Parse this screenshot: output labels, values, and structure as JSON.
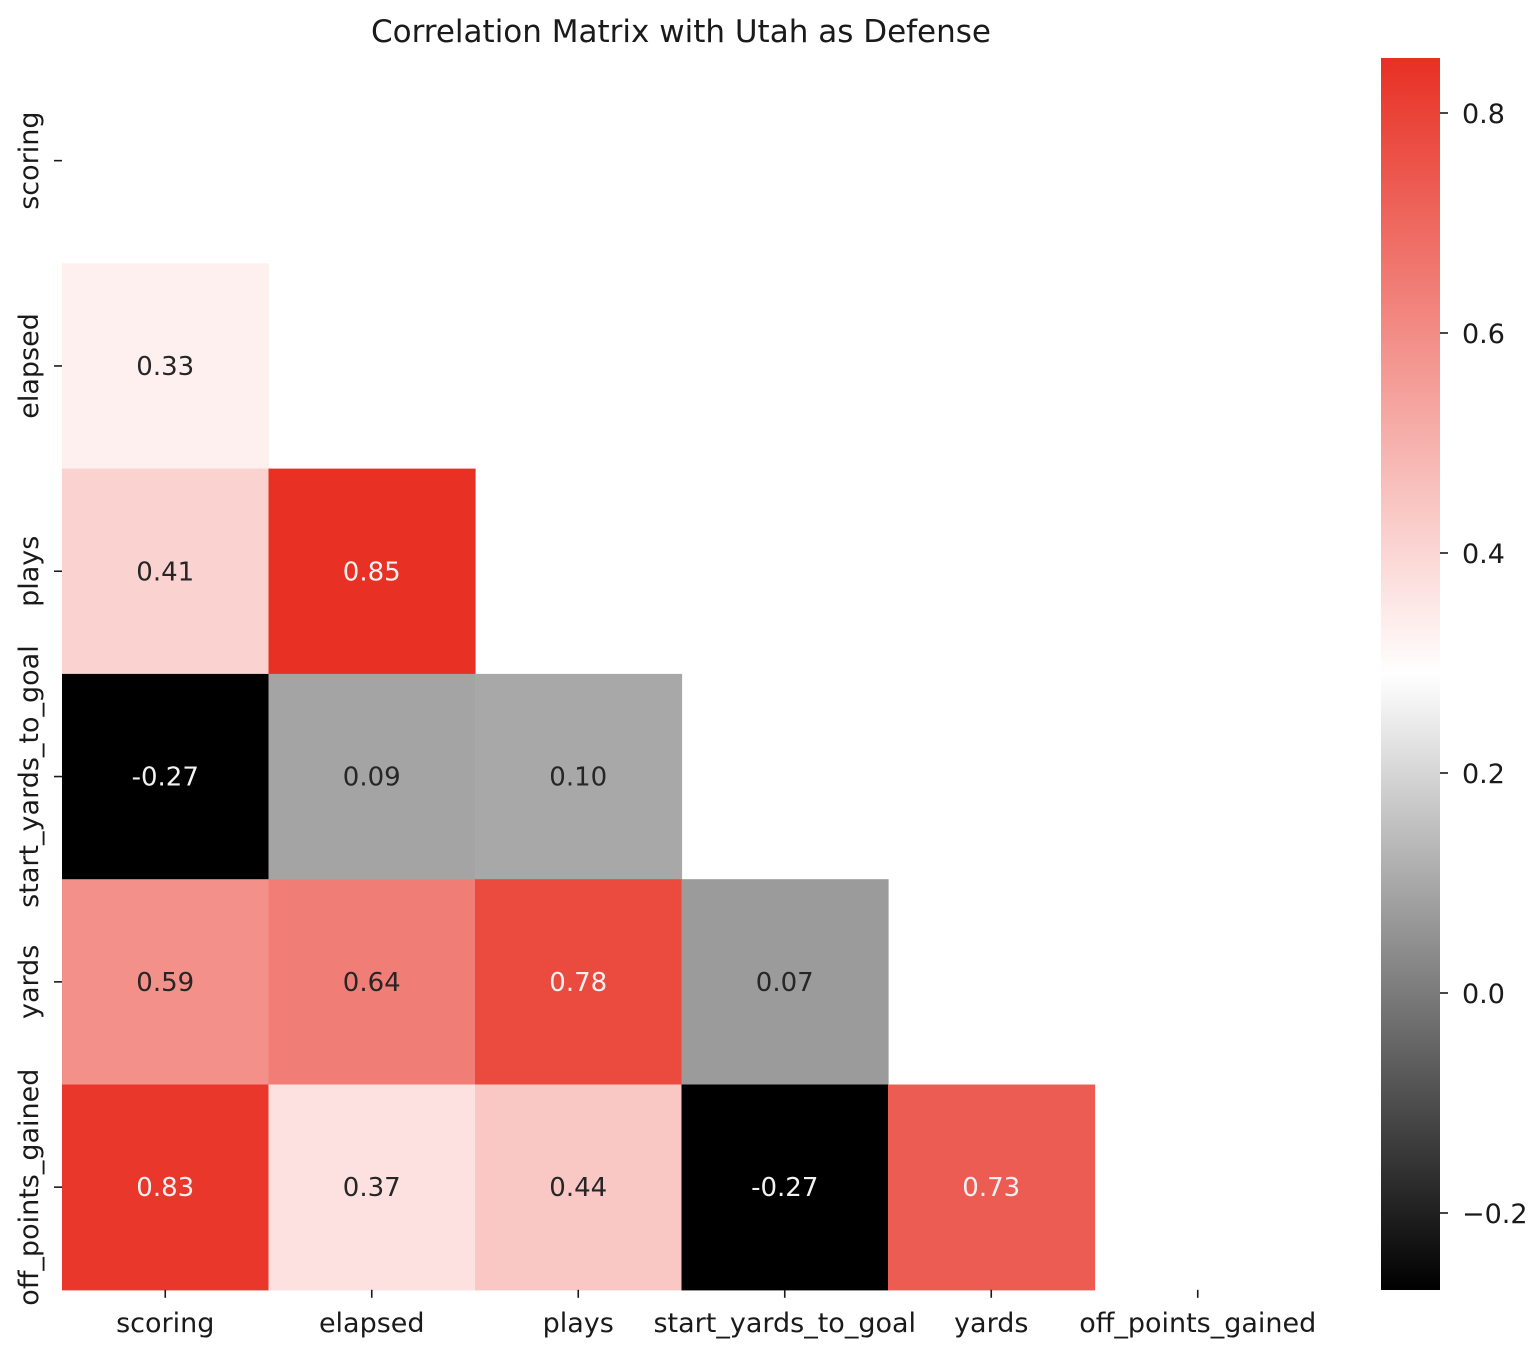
{
  "chart_data": {
    "type": "heatmap",
    "title": "Correlation Matrix with Utah as Defense",
    "mask": "upper-triangle-and-diagonal",
    "categories": [
      "scoring",
      "elapsed",
      "plays",
      "start_yards_to_goal",
      "yards",
      "off_points_gained"
    ],
    "rows": [
      "scoring",
      "elapsed",
      "plays",
      "start_yards_to_goal",
      "yards",
      "off_points_gained"
    ],
    "columns": [
      "scoring",
      "elapsed",
      "plays",
      "start_yards_to_goal",
      "yards",
      "off_points_gained"
    ],
    "cells": [
      {
        "row": "elapsed",
        "col": "scoring",
        "value": 0.33,
        "label": "0.33"
      },
      {
        "row": "plays",
        "col": "scoring",
        "value": 0.41,
        "label": "0.41"
      },
      {
        "row": "plays",
        "col": "elapsed",
        "value": 0.85,
        "label": "0.85"
      },
      {
        "row": "start_yards_to_goal",
        "col": "scoring",
        "value": -0.27,
        "label": "-0.27"
      },
      {
        "row": "start_yards_to_goal",
        "col": "elapsed",
        "value": 0.09,
        "label": "0.09"
      },
      {
        "row": "start_yards_to_goal",
        "col": "plays",
        "value": 0.1,
        "label": "0.10"
      },
      {
        "row": "yards",
        "col": "scoring",
        "value": 0.59,
        "label": "0.59"
      },
      {
        "row": "yards",
        "col": "elapsed",
        "value": 0.64,
        "label": "0.64"
      },
      {
        "row": "yards",
        "col": "plays",
        "value": 0.78,
        "label": "0.78"
      },
      {
        "row": "yards",
        "col": "start_yards_to_goal",
        "value": 0.07,
        "label": "0.07"
      },
      {
        "row": "off_points_gained",
        "col": "scoring",
        "value": 0.83,
        "label": "0.83"
      },
      {
        "row": "off_points_gained",
        "col": "elapsed",
        "value": 0.37,
        "label": "0.37"
      },
      {
        "row": "off_points_gained",
        "col": "plays",
        "value": 0.44,
        "label": "0.44"
      },
      {
        "row": "off_points_gained",
        "col": "start_yards_to_goal",
        "value": -0.27,
        "label": "-0.27"
      },
      {
        "row": "off_points_gained",
        "col": "yards",
        "value": 0.73,
        "label": "0.73"
      }
    ],
    "colorbar": {
      "vmin": -0.27,
      "vmax": 0.85,
      "center": 0.29,
      "ticks": [
        -0.2,
        0.0,
        0.2,
        0.4,
        0.6,
        0.8
      ],
      "tick_labels": [
        "−0.2",
        "0.0",
        "0.2",
        "0.4",
        "0.6",
        "0.8"
      ],
      "colors": [
        "#000000",
        "#ffffff",
        "#e83024"
      ]
    }
  }
}
